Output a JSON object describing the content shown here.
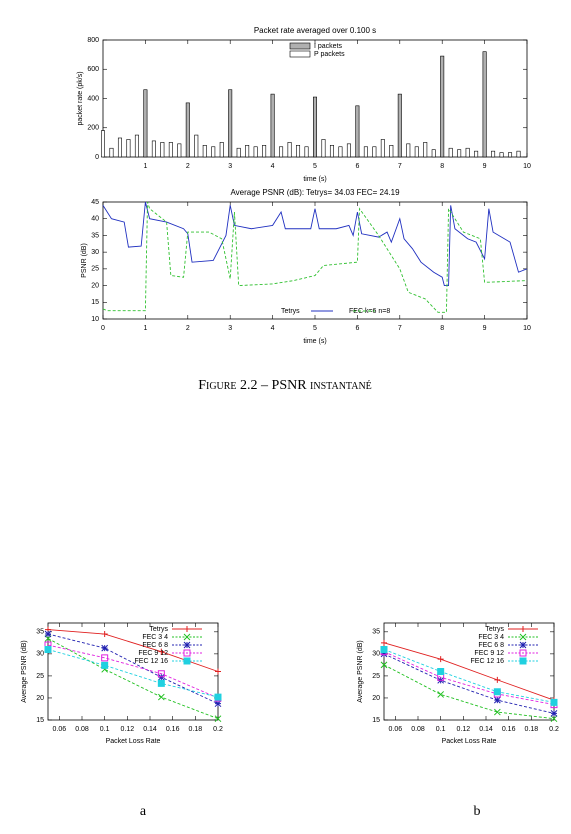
{
  "caption": "Figure 2.2 – PSNR instantané",
  "subfigure_labels": [
    "a",
    "b"
  ],
  "chart_data": [
    {
      "type": "bar",
      "title": "Packet rate averaged over 0.100 s",
      "xlabel": "time (s)",
      "ylabel": "packet rate (pk/s)",
      "x": [
        0,
        0.2,
        0.4,
        0.6,
        0.8,
        1,
        1.2,
        1.4,
        1.6,
        1.8,
        2,
        2.2,
        2.4,
        2.6,
        2.8,
        3,
        3.2,
        3.4,
        3.6,
        3.8,
        4,
        4.2,
        4.4,
        4.6,
        4.8,
        5,
        5.2,
        5.4,
        5.6,
        5.8,
        6,
        6.2,
        6.4,
        6.6,
        6.8,
        7,
        7.2,
        7.4,
        7.6,
        7.8,
        8,
        8.2,
        8.4,
        8.6,
        8.8,
        9,
        9.2,
        9.4,
        9.6,
        9.8
      ],
      "series": [
        {
          "name": "I packets",
          "color": "#b0b0b0",
          "values": [
            null,
            null,
            null,
            null,
            null,
            460,
            null,
            null,
            null,
            null,
            370,
            null,
            null,
            null,
            null,
            460,
            null,
            null,
            null,
            null,
            430,
            null,
            null,
            null,
            null,
            410,
            null,
            null,
            null,
            null,
            350,
            null,
            null,
            null,
            null,
            430,
            null,
            null,
            null,
            null,
            690,
            null,
            null,
            null,
            null,
            720,
            null,
            null,
            null,
            null
          ]
        },
        {
          "name": "P packets",
          "color": "#ffffff",
          "values": [
            180,
            60,
            130,
            120,
            150,
            null,
            110,
            100,
            100,
            90,
            null,
            150,
            80,
            70,
            100,
            null,
            60,
            80,
            70,
            80,
            null,
            70,
            100,
            80,
            70,
            null,
            120,
            80,
            70,
            90,
            null,
            70,
            70,
            120,
            80,
            null,
            90,
            70,
            100,
            50,
            null,
            60,
            50,
            60,
            40,
            null,
            40,
            30,
            30,
            40
          ]
        }
      ],
      "xlim": [
        0,
        10
      ],
      "xticks": [
        1,
        2,
        3,
        4,
        5,
        6,
        7,
        8,
        9,
        10
      ],
      "ylim": [
        0,
        800
      ],
      "yticks": [
        0,
        200,
        400,
        600,
        800
      ],
      "legend": "upper center"
    },
    {
      "type": "line",
      "title": "Average PSNR (dB): Tetrys= 34.03   FEC= 24.19",
      "xlabel": "time (s)",
      "ylabel": "PSNR (dB)",
      "series": [
        {
          "name": "Tetrys",
          "color": "#2030c0",
          "dashed": false,
          "x": [
            0,
            0.2,
            0.5,
            0.6,
            0.9,
            1,
            1.1,
            1.5,
            1.9,
            2,
            2.1,
            2.6,
            2.9,
            3,
            3.1,
            3.5,
            4,
            4.2,
            4.3,
            4.5,
            4.9,
            5,
            5.1,
            5.5,
            5.8,
            5.9,
            6,
            6.1,
            6.5,
            6.7,
            6.8,
            7,
            7.1,
            7.3,
            7.5,
            7.8,
            8,
            8.05,
            8.15,
            8.2,
            8.3,
            8.6,
            8.8,
            9,
            9.1,
            9.2,
            9.6,
            9.8,
            10
          ],
          "values": [
            44,
            40,
            39,
            31.5,
            31.8,
            45,
            40,
            39,
            37,
            35.5,
            27,
            27.5,
            35,
            44,
            38,
            37,
            38,
            42,
            37,
            37,
            37,
            43,
            37,
            37,
            38,
            35,
            42,
            35.5,
            34.5,
            36,
            33,
            40,
            34,
            31,
            27,
            24,
            22.5,
            20,
            20,
            44,
            37,
            34,
            33,
            28,
            43,
            36,
            33,
            24,
            25
          ]
        },
        {
          "name": "FEC k=6 n=8",
          "color": "#30c030",
          "dashed": true,
          "x": [
            0,
            0.1,
            1,
            1.05,
            1.1,
            1.5,
            1.6,
            1.9,
            2,
            2.5,
            2.8,
            3,
            3.1,
            3.2,
            4,
            4.5,
            5,
            5.2,
            6,
            6.05,
            6.5,
            7,
            7.2,
            7.6,
            7.9,
            8.1,
            8.15,
            8.5,
            8.9,
            9,
            9.1,
            10
          ],
          "values": [
            13,
            12.5,
            12.5,
            45,
            43,
            39,
            23,
            22.5,
            36,
            36,
            34,
            22,
            42,
            20,
            20.5,
            21.5,
            23,
            26,
            27,
            43,
            35,
            25,
            18,
            16,
            12,
            12,
            43,
            36,
            34,
            21,
            21,
            21.5
          ]
        }
      ],
      "xlim": [
        0,
        10
      ],
      "xticks": [
        0,
        1,
        2,
        3,
        4,
        5,
        6,
        7,
        8,
        9,
        10
      ],
      "ylim": [
        10,
        45
      ],
      "yticks": [
        10,
        15,
        20,
        25,
        30,
        35,
        40,
        45
      ],
      "legend": "lower center"
    },
    {
      "type": "line",
      "xlabel": "Packet Loss Rate",
      "ylabel": "Average PSNR (dB)",
      "series": [
        {
          "name": "Tetrys",
          "color": "#e02020",
          "marker": "plus",
          "x": [
            0.05,
            0.1,
            0.15,
            0.2
          ],
          "values": [
            35.5,
            34.5,
            30.5,
            26
          ]
        },
        {
          "name": "FEC 3 4",
          "color": "#20c020",
          "marker": "cross",
          "dashed": true,
          "x": [
            0.05,
            0.1,
            0.15,
            0.2
          ],
          "values": [
            33.5,
            26.5,
            20.2,
            15.3
          ]
        },
        {
          "name": "FEC 6 8",
          "color": "#2020b0",
          "marker": "star",
          "dashed": true,
          "x": [
            0.05,
            0.1,
            0.15,
            0.2
          ],
          "values": [
            34.5,
            31.3,
            24.7,
            18.7
          ]
        },
        {
          "name": "FEC 9 12",
          "color": "#e020e0",
          "marker": "square",
          "dashed": true,
          "x": [
            0.05,
            0.1,
            0.15,
            0.2
          ],
          "values": [
            32,
            29.1,
            25.5,
            20
          ]
        },
        {
          "name": "FEC 12 16",
          "color": "#20d0e0",
          "marker": "filledsquare",
          "dashed": true,
          "x": [
            0.05,
            0.1,
            0.15,
            0.2
          ],
          "values": [
            31,
            27.4,
            23.3,
            20.2
          ]
        }
      ],
      "xlim": [
        0.05,
        0.2
      ],
      "xticks": [
        0.06,
        0.08,
        0.1,
        0.12,
        0.14,
        0.16,
        0.18,
        0.2
      ],
      "ylim": [
        15,
        37
      ],
      "yticks": [
        15,
        20,
        25,
        30,
        35
      ],
      "legend": "upper right"
    },
    {
      "type": "line",
      "xlabel": "Packet Loss Rate",
      "ylabel": "Average PSNR (dB)",
      "series": [
        {
          "name": "Tetrys",
          "color": "#e02020",
          "marker": "plus",
          "x": [
            0.05,
            0.1,
            0.15,
            0.2
          ],
          "values": [
            32.5,
            28.8,
            24.1,
            19.5
          ]
        },
        {
          "name": "FEC 3 4",
          "color": "#20c020",
          "marker": "cross",
          "dashed": true,
          "x": [
            0.05,
            0.1,
            0.15,
            0.2
          ],
          "values": [
            27.5,
            20.8,
            16.8,
            15.3
          ]
        },
        {
          "name": "FEC 6 8",
          "color": "#2020b0",
          "marker": "star",
          "dashed": true,
          "x": [
            0.05,
            0.1,
            0.15,
            0.2
          ],
          "values": [
            30,
            24,
            19.5,
            16.5
          ]
        },
        {
          "name": "FEC 9 12",
          "color": "#e020e0",
          "marker": "square",
          "dashed": true,
          "x": [
            0.05,
            0.1,
            0.15,
            0.2
          ],
          "values": [
            30.5,
            24.7,
            20.9,
            18.5
          ]
        },
        {
          "name": "FEC 12 16",
          "color": "#20d0e0",
          "marker": "filledsquare",
          "dashed": true,
          "x": [
            0.05,
            0.1,
            0.15,
            0.2
          ],
          "values": [
            31,
            26,
            21.4,
            19
          ]
        }
      ],
      "xlim": [
        0.05,
        0.2
      ],
      "xticks": [
        0.06,
        0.08,
        0.1,
        0.12,
        0.14,
        0.16,
        0.18,
        0.2
      ],
      "ylim": [
        15,
        37
      ],
      "yticks": [
        15,
        20,
        25,
        30,
        35
      ],
      "legend": "upper right"
    }
  ]
}
